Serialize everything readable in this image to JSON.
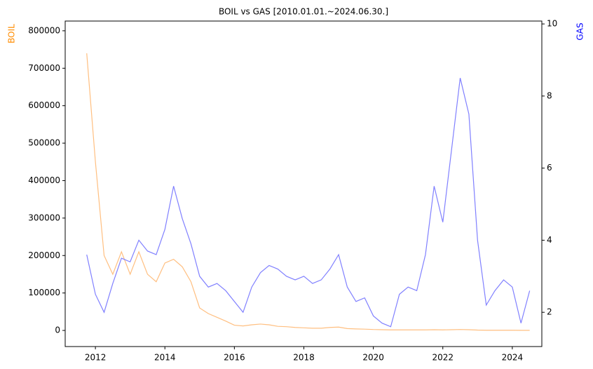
{
  "chart_data": {
    "type": "line",
    "title": "BOIL vs GAS [2010.01.01.~2024.06.30.]",
    "ylabel": "BOIL",
    "ylabel_color": "darkorange",
    "y2label": "GAS",
    "y2label_color": "blue",
    "x": [
      2011.75,
      2012.0,
      2012.25,
      2012.5,
      2012.75,
      2013.0,
      2013.25,
      2013.5,
      2013.75,
      2014.0,
      2014.25,
      2014.5,
      2014.75,
      2015.0,
      2015.25,
      2015.5,
      2015.75,
      2016.0,
      2016.25,
      2016.5,
      2016.75,
      2017.0,
      2017.25,
      2017.5,
      2017.75,
      2018.0,
      2018.25,
      2018.5,
      2018.75,
      2019.0,
      2019.25,
      2019.5,
      2019.75,
      2020.0,
      2020.25,
      2020.5,
      2020.75,
      2021.0,
      2021.25,
      2021.5,
      2021.75,
      2022.0,
      2022.25,
      2022.5,
      2022.75,
      2023.0,
      2023.25,
      2023.5,
      2023.75,
      2024.0,
      2024.25,
      2024.5
    ],
    "series": [
      {
        "color": "#ffbf80",
        "axis": "y",
        "values": [
          740000,
          450000,
          200000,
          150000,
          210000,
          150000,
          210000,
          150000,
          130000,
          180000,
          190000,
          170000,
          130000,
          60000,
          45000,
          35000,
          25000,
          14000,
          12000,
          15000,
          17000,
          15000,
          11000,
          10000,
          8000,
          7000,
          6000,
          6000,
          8000,
          9000,
          5000,
          4000,
          3500,
          2500,
          2000,
          1500,
          1500,
          1500,
          1500,
          1500,
          2000,
          1500,
          2000,
          2500,
          2000,
          1000,
          500,
          500,
          500,
          500,
          300,
          300
        ]
      },
      {
        "color": "#8080ff",
        "axis": "y2",
        "values": [
          3.6,
          2.5,
          2.0,
          2.8,
          3.5,
          3.4,
          4.0,
          3.7,
          3.6,
          4.3,
          5.5,
          4.6,
          3.9,
          3.0,
          2.7,
          2.8,
          2.6,
          2.3,
          2.0,
          2.7,
          3.1,
          3.3,
          3.2,
          3.0,
          2.9,
          3.0,
          2.8,
          2.9,
          3.2,
          3.6,
          2.7,
          2.3,
          2.4,
          1.9,
          1.7,
          1.6,
          2.5,
          2.7,
          2.6,
          3.6,
          5.5,
          4.5,
          6.5,
          8.5,
          7.5,
          4.0,
          2.2,
          2.6,
          2.9,
          2.7,
          1.7,
          2.6
        ]
      }
    ],
    "xlim": [
      2011.13,
      2024.85
    ],
    "xticks": [
      2012,
      2014,
      2016,
      2018,
      2020,
      2022,
      2024
    ],
    "ylim": [
      -43000,
      826000
    ],
    "yticks": [
      0,
      100000,
      200000,
      300000,
      400000,
      500000,
      600000,
      700000,
      800000
    ],
    "y2lim": [
      1.05,
      10.08
    ],
    "y2ticks": [
      2,
      4,
      6,
      8,
      10
    ]
  }
}
